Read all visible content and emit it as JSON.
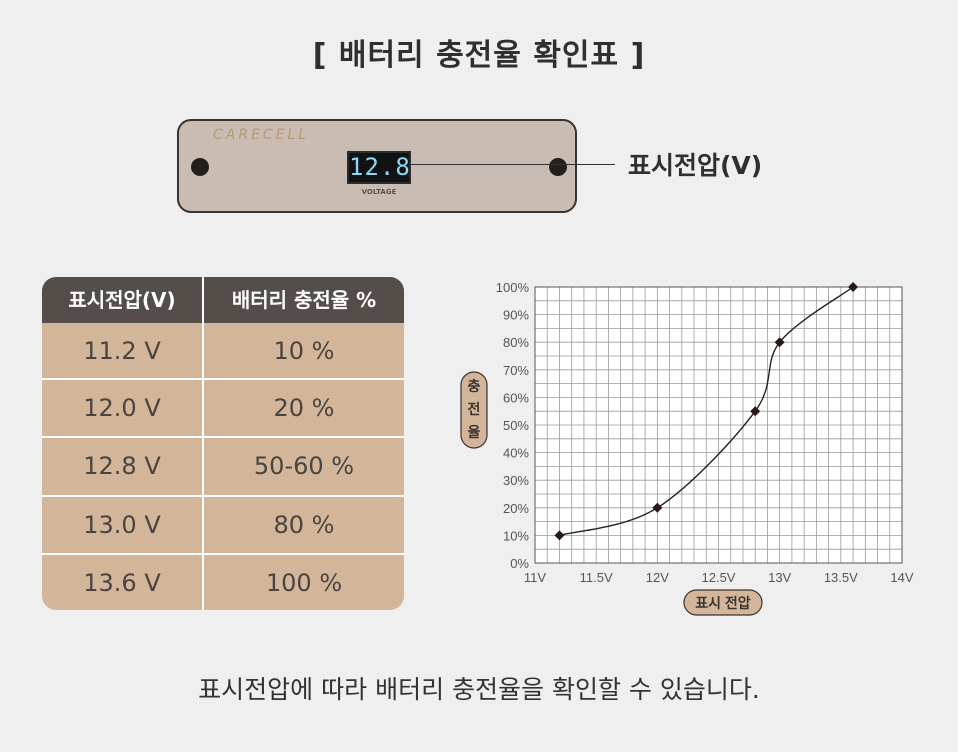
{
  "title": "[ 배터리 충전율 확인표 ]",
  "device": {
    "brand": "CARECELL",
    "display_value": "12.8",
    "display_label": "VOLTAGE",
    "callout": "표시전압(V)"
  },
  "table": {
    "headers": [
      "표시전압(V)",
      "배터리 충전율  %"
    ],
    "rows": [
      [
        "11.2 V",
        "10 %"
      ],
      [
        "12.0 V",
        "20 %"
      ],
      [
        "12.8 V",
        "50-60 %"
      ],
      [
        "13.0 V",
        "80 %"
      ],
      [
        "13.6 V",
        "100 %"
      ]
    ]
  },
  "chart_data": {
    "type": "line",
    "x_ticks": [
      "11V",
      "11.5V",
      "12V",
      "12.5V",
      "13V",
      "13.5V",
      "14V"
    ],
    "y_ticks": [
      "0%",
      "10%",
      "20%",
      "30%",
      "40%",
      "50%",
      "60%",
      "70%",
      "80%",
      "90%",
      "100%"
    ],
    "xlim": [
      11,
      14
    ],
    "ylim": [
      0,
      100
    ],
    "xlabel": "표시 전압",
    "ylabel": "충전율",
    "grid": true,
    "series": [
      {
        "x": [
          11.2,
          12.0,
          12.8,
          13.0,
          13.6
        ],
        "y": [
          10,
          20,
          55,
          80,
          100
        ]
      }
    ]
  },
  "footer": "표시전압에 따라 배터리 충전율을 확인할 수 있습니다.",
  "colors": {
    "background": "#efefef",
    "table_header": "#554d4a",
    "table_body": "#d3b69a",
    "device_body": "#c8bcb3",
    "display_text": "#8fd8f2",
    "axis_badge": "#d3b69a"
  }
}
